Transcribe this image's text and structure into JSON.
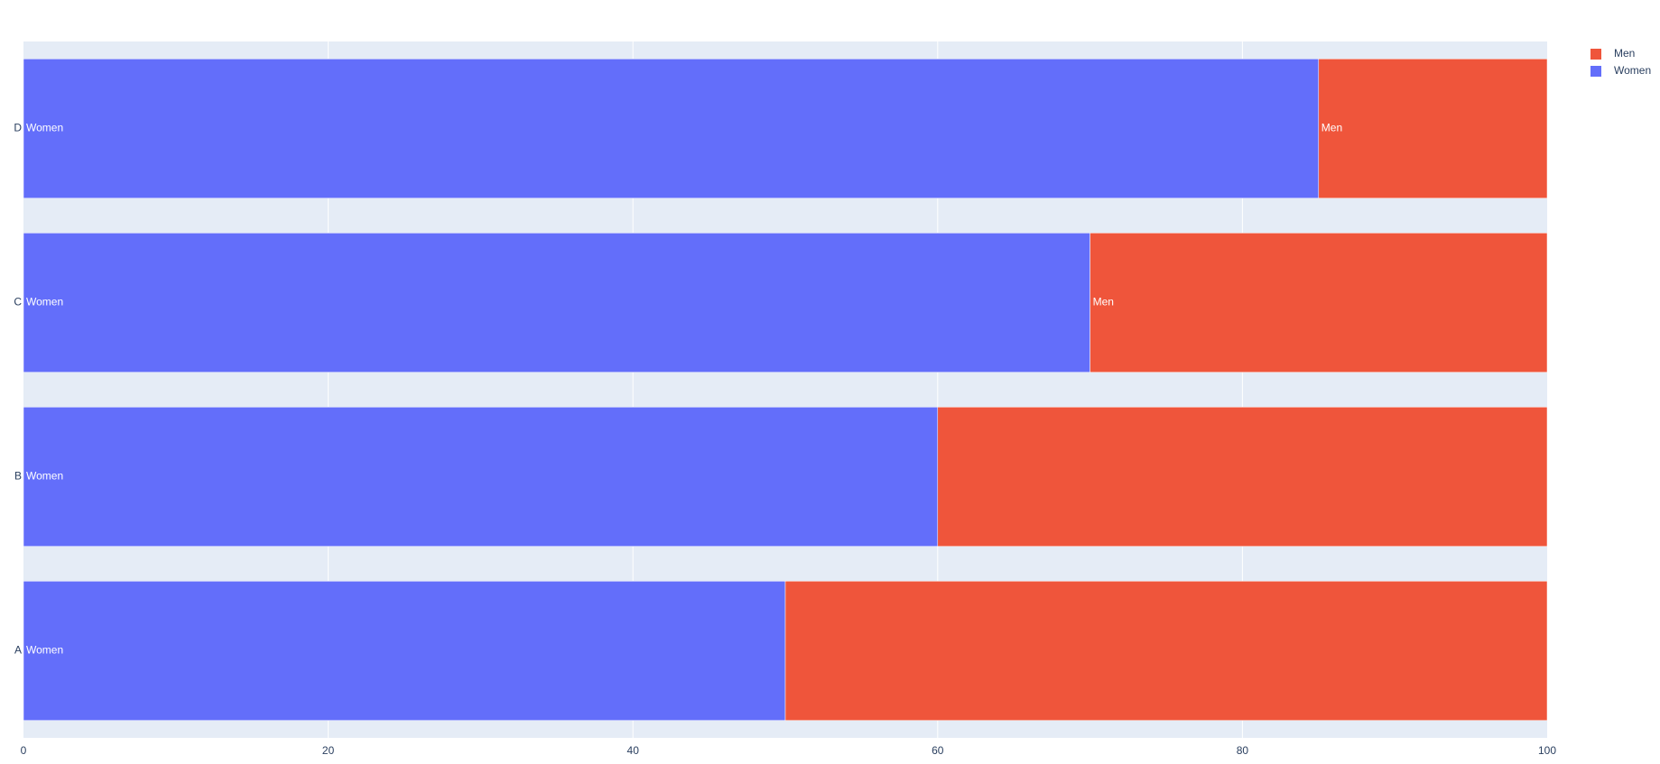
{
  "chart_data": {
    "type": "bar",
    "orientation": "horizontal",
    "barmode": "stack",
    "categories": [
      "A",
      "B",
      "C",
      "D"
    ],
    "series": [
      {
        "name": "Women",
        "color": "#636efa",
        "values": [
          50,
          60,
          70,
          85
        ],
        "bar_labels": [
          "Women",
          "Women",
          "Women",
          "Women"
        ]
      },
      {
        "name": "Men",
        "color": "#ef553b",
        "values": [
          50,
          40,
          30,
          15
        ],
        "bar_labels": [
          "",
          "",
          "Men",
          "Men"
        ]
      }
    ],
    "xlim": [
      0,
      100
    ],
    "xticks": [
      0,
      20,
      40,
      60,
      80,
      100
    ],
    "grid": true,
    "legend_position": "top-right",
    "legend": [
      {
        "name": "Men",
        "color": "#ef553b"
      },
      {
        "name": "Women",
        "color": "#636efa"
      }
    ],
    "plot_background": "#e5ecf6",
    "title": "",
    "xlabel": "",
    "ylabel": ""
  }
}
